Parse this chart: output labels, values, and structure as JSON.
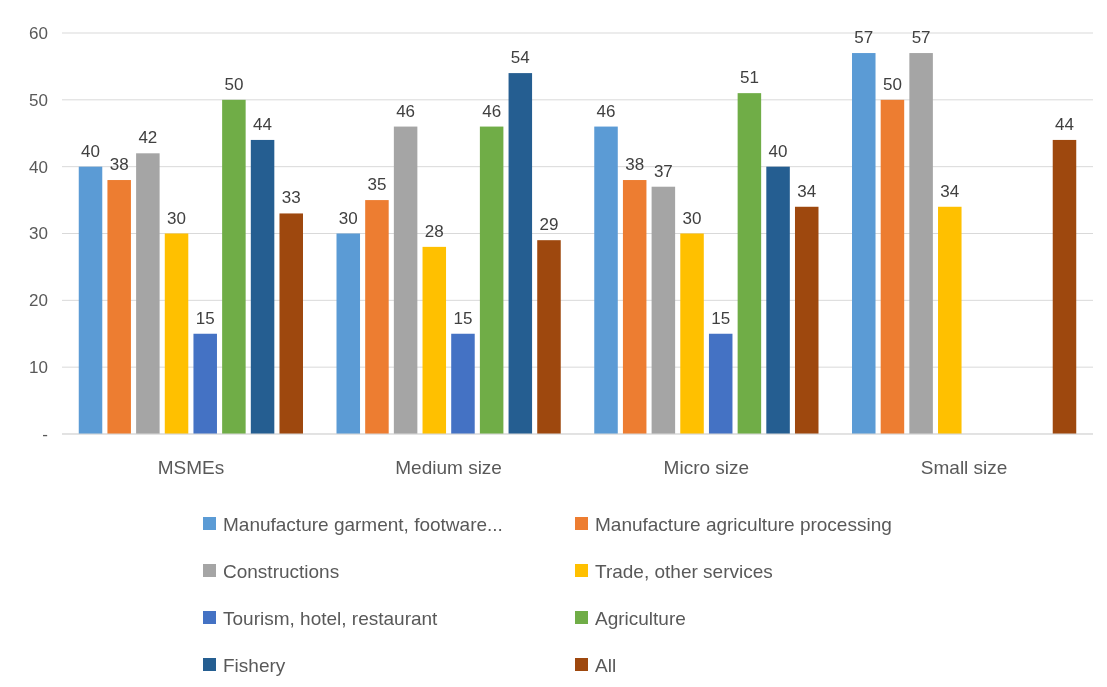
{
  "chart_data": {
    "type": "bar",
    "categories": [
      "MSMEs",
      "Medium size",
      "Micro size",
      "Small size"
    ],
    "series": [
      {
        "name": "Manufacture garment, footware...",
        "color": "#5b9bd5",
        "values": [
          40,
          30,
          46,
          57
        ]
      },
      {
        "name": "Manufacture agriculture processing",
        "color": "#ed7d31",
        "values": [
          38,
          35,
          38,
          50
        ]
      },
      {
        "name": "Constructions",
        "color": "#a5a5a5",
        "values": [
          42,
          46,
          37,
          57
        ]
      },
      {
        "name": "Trade, other services",
        "color": "#ffc000",
        "values": [
          30,
          28,
          30,
          34
        ]
      },
      {
        "name": "Tourism, hotel, restaurant",
        "color": "#4472c4",
        "values": [
          15,
          15,
          15,
          null
        ]
      },
      {
        "name": "Agriculture",
        "color": "#70ad47",
        "values": [
          50,
          46,
          51,
          null
        ]
      },
      {
        "name": "Fishery",
        "color": "#255e91",
        "values": [
          44,
          54,
          40,
          null
        ]
      },
      {
        "name": "All",
        "color": "#9e480e",
        "values": [
          33,
          29,
          34,
          44
        ]
      }
    ],
    "ylim": [
      0,
      60
    ],
    "yticks": [
      {
        "value": 0,
        "label": "-"
      },
      10,
      20,
      30,
      40,
      50,
      60
    ],
    "grid": "y",
    "data_labels": true,
    "legend": "bottom"
  }
}
